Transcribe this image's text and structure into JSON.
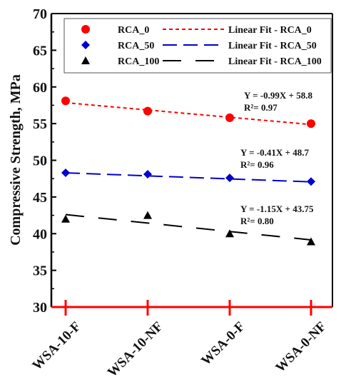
{
  "chart_data": {
    "type": "scatter",
    "title": "",
    "xlabel": "",
    "ylabel": "Compressive Strength, MPa",
    "categories": [
      "WSA-10-F",
      "WSA-10-NF",
      "WSA-0-F",
      "WSA-0-NF"
    ],
    "ylim": [
      30,
      70
    ],
    "yticks": [
      "30",
      "35",
      "40",
      "45",
      "50",
      "55",
      "60",
      "65",
      "70"
    ],
    "legend_position": "top",
    "series": [
      {
        "name": "RCA_0",
        "marker": "circle",
        "color": "#ff0000",
        "values": [
          58.1,
          56.7,
          55.8,
          55.0
        ],
        "fit_name": "Linear Fit - RCA_0",
        "fit_values": [
          57.85,
          56.86,
          55.87,
          54.88
        ],
        "fit_style": "dotted",
        "fit_color": "#ff0000",
        "equation": "Y = -0.99X + 58.8",
        "r2": "R²= 0.97"
      },
      {
        "name": "RCA_50",
        "marker": "diamond",
        "color": "#0000cc",
        "values": [
          48.3,
          48.1,
          47.6,
          47.1
        ],
        "fit_name": "Linear Fit - RCA_50",
        "fit_values": [
          48.29,
          47.88,
          47.47,
          47.06
        ],
        "fit_style": "dashed",
        "fit_color": "#0000cc",
        "equation": "Y = -0.41X + 48.7",
        "r2": "R²= 0.96"
      },
      {
        "name": "RCA_100",
        "marker": "triangle",
        "color": "#000000",
        "values": [
          42.0,
          42.5,
          40.0,
          38.9
        ],
        "fit_name": "Linear Fit - RCA_100",
        "fit_values": [
          42.6,
          41.45,
          40.3,
          39.15
        ],
        "fit_style": "longdash",
        "fit_color": "#000000",
        "equation": "Y = -1.15X + 43.75",
        "r2": "R²= 0.80"
      }
    ]
  }
}
